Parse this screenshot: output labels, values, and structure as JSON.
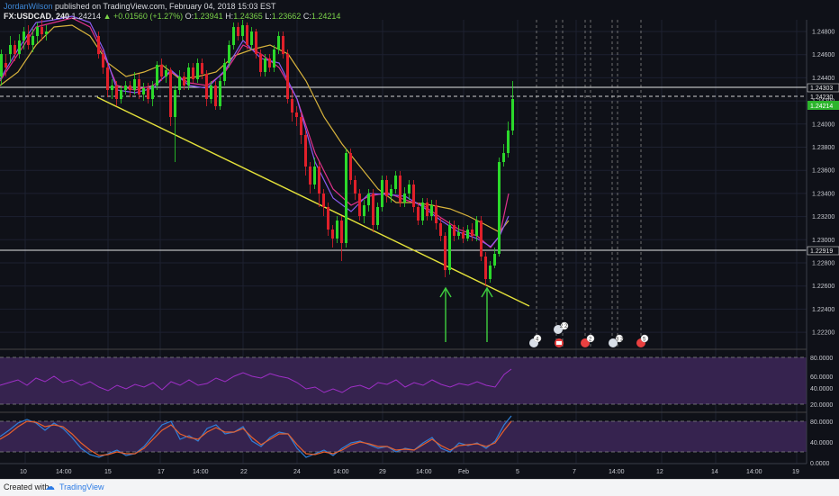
{
  "header": {
    "author": "JordanWilson",
    "published_text": "published on TradingView.com, February 04, 2018 15:03 EST",
    "symbol": "FX:USDCAD, 240",
    "last_price": "1.24214",
    "change": "+0.01560 (+1.27%)",
    "o_label": "O:",
    "open": "1.23941",
    "h_label": "H:",
    "high": "1.24365",
    "l_label": "L:",
    "low": "1.23662",
    "c_label": "C:",
    "close": "1.24214"
  },
  "price_axis": {
    "ticks": [
      "1.24800",
      "1.24600",
      "1.24400",
      "1.24200",
      "1.24000",
      "1.23800",
      "1.23600",
      "1.23400",
      "1.23200",
      "1.23000",
      "1.22800",
      "1.22600",
      "1.22400",
      "1.22200"
    ],
    "ticks_top_value": 1.248,
    "ticks_step": 0.002,
    "label_resistance": "1.24303",
    "label_dashed": "1.24230",
    "label_last": "1.24214",
    "label_support": "1.22919"
  },
  "rsi_axis": {
    "ticks": [
      "80.0000",
      "60.0000",
      "40.0000",
      "20.0000"
    ]
  },
  "stoch_axis": {
    "ticks": [
      "80.0000",
      "40.0000",
      "0.0000"
    ]
  },
  "time_axis": {
    "labels": [
      "10",
      "14:00",
      "15",
      "17",
      "14:00",
      "22",
      "24",
      "14:00",
      "29",
      "14:00",
      "Feb",
      "5",
      "7",
      "14:00",
      "12",
      "14",
      "14:00",
      "19"
    ]
  },
  "events": {
    "badges": [
      "4",
      "2 2",
      "",
      "2",
      "3 2",
      "5"
    ]
  },
  "colors": {
    "background": "#0f1118",
    "bull": "#2bd92b",
    "bear": "#e0202a",
    "trendline": "#e3e03a",
    "ma_fast": "#8a5cf0",
    "ma_mid": "#e0318c",
    "ma_slow": "#d8b33c",
    "rsi_line": "#9f2fc7",
    "stoch_k": "#2f7fd8",
    "stoch_d": "#e8602c",
    "panel_fill": "#36234f",
    "arrow": "#3fcf3f",
    "last_label_bg": "#2cb52c"
  },
  "footer": {
    "created_with": "Created with",
    "brand": "TradingView"
  }
}
